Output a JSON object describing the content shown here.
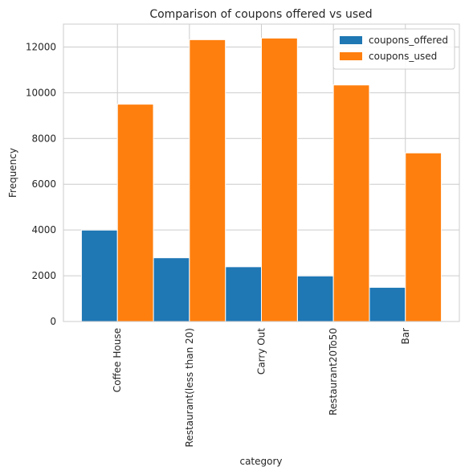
{
  "chart_data": {
    "type": "bar",
    "title": "Comparison of coupons offered vs used",
    "xlabel": "category",
    "ylabel": "Frequency",
    "categories": [
      "Coffee House",
      "Restaurant(less than 20)",
      "Carry Out",
      "Restaurant20To50",
      "Bar"
    ],
    "series": [
      {
        "name": "coupons_offered",
        "values": [
          3996,
          2786,
          2393,
          1991,
          1492
        ],
        "color": "#1f77b4"
      },
      {
        "name": "coupons_used",
        "values": [
          9500,
          12320,
          12390,
          10340,
          7370
        ],
        "color": "#ff7f0e"
      }
    ],
    "ylim": [
      0,
      13000
    ],
    "yticks": [
      "0",
      "2000",
      "4000",
      "6000",
      "8000",
      "10000",
      "12000"
    ],
    "grid": true,
    "legend": "top-right"
  }
}
